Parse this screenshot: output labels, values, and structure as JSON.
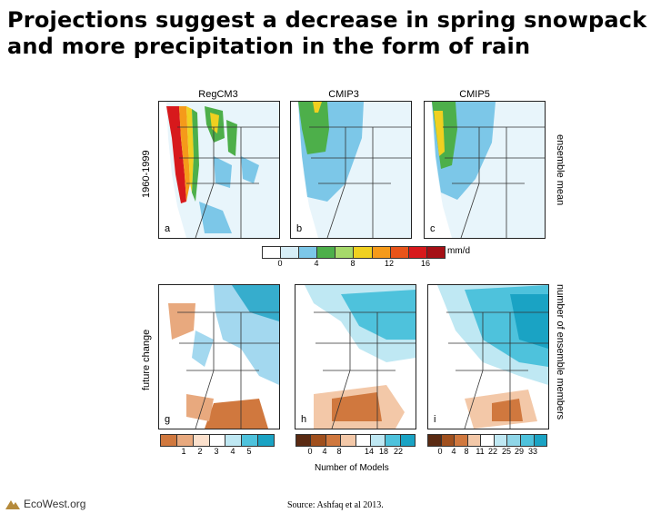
{
  "slide": {
    "title": "Projections suggest a decrease in spring snowpack and more precipitation in the form of rain",
    "source": "Source: Ashfaq et al 2013.",
    "logo_text": "EcoWest.org"
  },
  "columns": [
    "RegCM3",
    "CMIP3",
    "CMIP5"
  ],
  "row_labels": {
    "top_left": "1960-1999",
    "top_right": "ensemble mean",
    "bottom_left": "future change",
    "bottom_right": "number of ensemble members"
  },
  "panels": {
    "top": [
      "a",
      "b",
      "c"
    ],
    "bottom": [
      "g",
      "h",
      "i"
    ]
  },
  "colorbars": {
    "top": {
      "unit": "mm/d",
      "ticks": [
        "0",
        "4",
        "8",
        "12",
        "16"
      ],
      "colors": [
        "#ffffff",
        "#d7eef7",
        "#7cc7e8",
        "#4daf4a",
        "#a6d96a",
        "#f0d020",
        "#f59a1a",
        "#e8541a",
        "#d7191c",
        "#a50f15"
      ]
    },
    "g": {
      "ticks": [
        "1",
        "2",
        "3",
        "4",
        "5"
      ],
      "colors": [
        "#d0783e",
        "#e8a97e",
        "#fbe0cc",
        "#ffffff",
        "#bfe8f3",
        "#4ec2dc",
        "#1aa3c4"
      ]
    },
    "h": {
      "ticks": [
        "0",
        "4",
        "8",
        "14",
        "18",
        "22"
      ],
      "colors": [
        "#5a2a12",
        "#a0501e",
        "#d0783e",
        "#f3c8a8",
        "#ffffff",
        "#bfe8f3",
        "#4ec2dc",
        "#1aa3c4"
      ],
      "xlabel": "Number of Models"
    },
    "i": {
      "ticks": [
        "0",
        "4",
        "8",
        "11",
        "22",
        "25",
        "29",
        "33"
      ],
      "colors": [
        "#5a2a12",
        "#a0501e",
        "#d0783e",
        "#f3c8a8",
        "#ffffff",
        "#bfe8f3",
        "#8fd6e8",
        "#4ec2dc",
        "#1aa3c4"
      ]
    }
  },
  "colors": {
    "ocean": "#ffffff",
    "land_light": "#e8f5fb",
    "blue": "#7cc7e8",
    "green": "#4daf4a",
    "yellow": "#f0d020",
    "orange": "#f59a1a",
    "red": "#d7191c",
    "cyan": "#1aa3c4",
    "brown": "#d0783e"
  }
}
